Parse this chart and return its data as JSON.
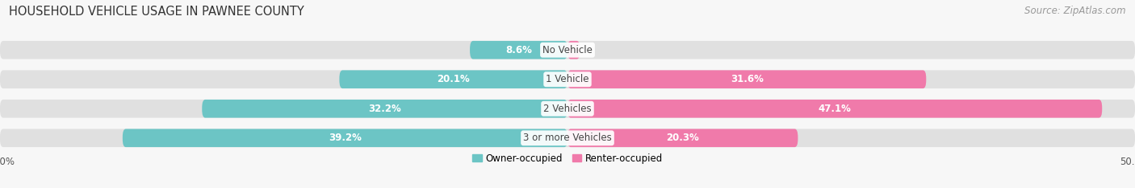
{
  "title": "HOUSEHOLD VEHICLE USAGE IN PAWNEE COUNTY",
  "source": "Source: ZipAtlas.com",
  "categories": [
    "No Vehicle",
    "1 Vehicle",
    "2 Vehicles",
    "3 or more Vehicles"
  ],
  "owner_values": [
    8.6,
    20.1,
    32.2,
    39.2
  ],
  "renter_values": [
    1.1,
    31.6,
    47.1,
    20.3
  ],
  "owner_color": "#6cc5c5",
  "renter_color": "#f07aaa",
  "bar_bg_color": "#e0e0e0",
  "owner_label": "Owner-occupied",
  "renter_label": "Renter-occupied",
  "xlim": 50.0,
  "title_fontsize": 10.5,
  "source_fontsize": 8.5,
  "label_fontsize": 8.5,
  "tick_fontsize": 8.5,
  "bar_height": 0.62,
  "background_color": "#f7f7f7",
  "cat_label_fontsize": 8.5
}
